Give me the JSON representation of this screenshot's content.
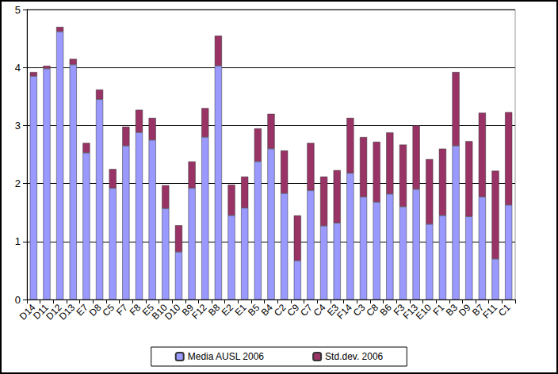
{
  "chart_data": {
    "type": "bar",
    "categories": [
      "D14",
      "D11",
      "D12",
      "D13",
      "E7",
      "D8",
      "C5",
      "F7",
      "F8",
      "E5",
      "B10",
      "D10",
      "B9",
      "F12",
      "B8",
      "E2",
      "E1",
      "B5",
      "B4",
      "C2",
      "C9",
      "C7",
      "C4",
      "E3",
      "F14",
      "C3",
      "C8",
      "B6",
      "F3",
      "F13",
      "E10",
      "F1",
      "B3",
      "D9",
      "B7",
      "F11",
      "C1"
    ],
    "series": [
      {
        "name": "Media AUSL 2006",
        "color": "#9999ff",
        "values": [
          3.85,
          3.98,
          4.62,
          4.05,
          2.53,
          3.45,
          1.92,
          2.65,
          2.88,
          2.75,
          1.57,
          0.82,
          1.92,
          2.8,
          4.03,
          1.45,
          1.58,
          2.38,
          2.6,
          1.83,
          0.67,
          1.88,
          1.27,
          1.32,
          2.18,
          1.77,
          1.68,
          1.82,
          1.6,
          1.9,
          1.3,
          1.45,
          2.65,
          1.43,
          1.77,
          0.7,
          1.63
        ]
      },
      {
        "name": "Std.dev. 2006",
        "color": "#993366",
        "values": [
          0.07,
          0.05,
          0.08,
          0.1,
          0.17,
          0.17,
          0.33,
          0.33,
          0.39,
          0.38,
          0.4,
          0.46,
          0.46,
          0.5,
          0.52,
          0.53,
          0.54,
          0.57,
          0.6,
          0.74,
          0.78,
          0.82,
          0.85,
          0.91,
          0.95,
          1.03,
          1.04,
          1.06,
          1.07,
          1.1,
          1.12,
          1.15,
          1.27,
          1.3,
          1.45,
          1.52,
          1.6
        ]
      }
    ],
    "ylim": [
      0,
      5
    ],
    "yticks": [
      0,
      1,
      2,
      3,
      4,
      5
    ],
    "stacked": true,
    "grid": true,
    "legend": "bottom"
  }
}
